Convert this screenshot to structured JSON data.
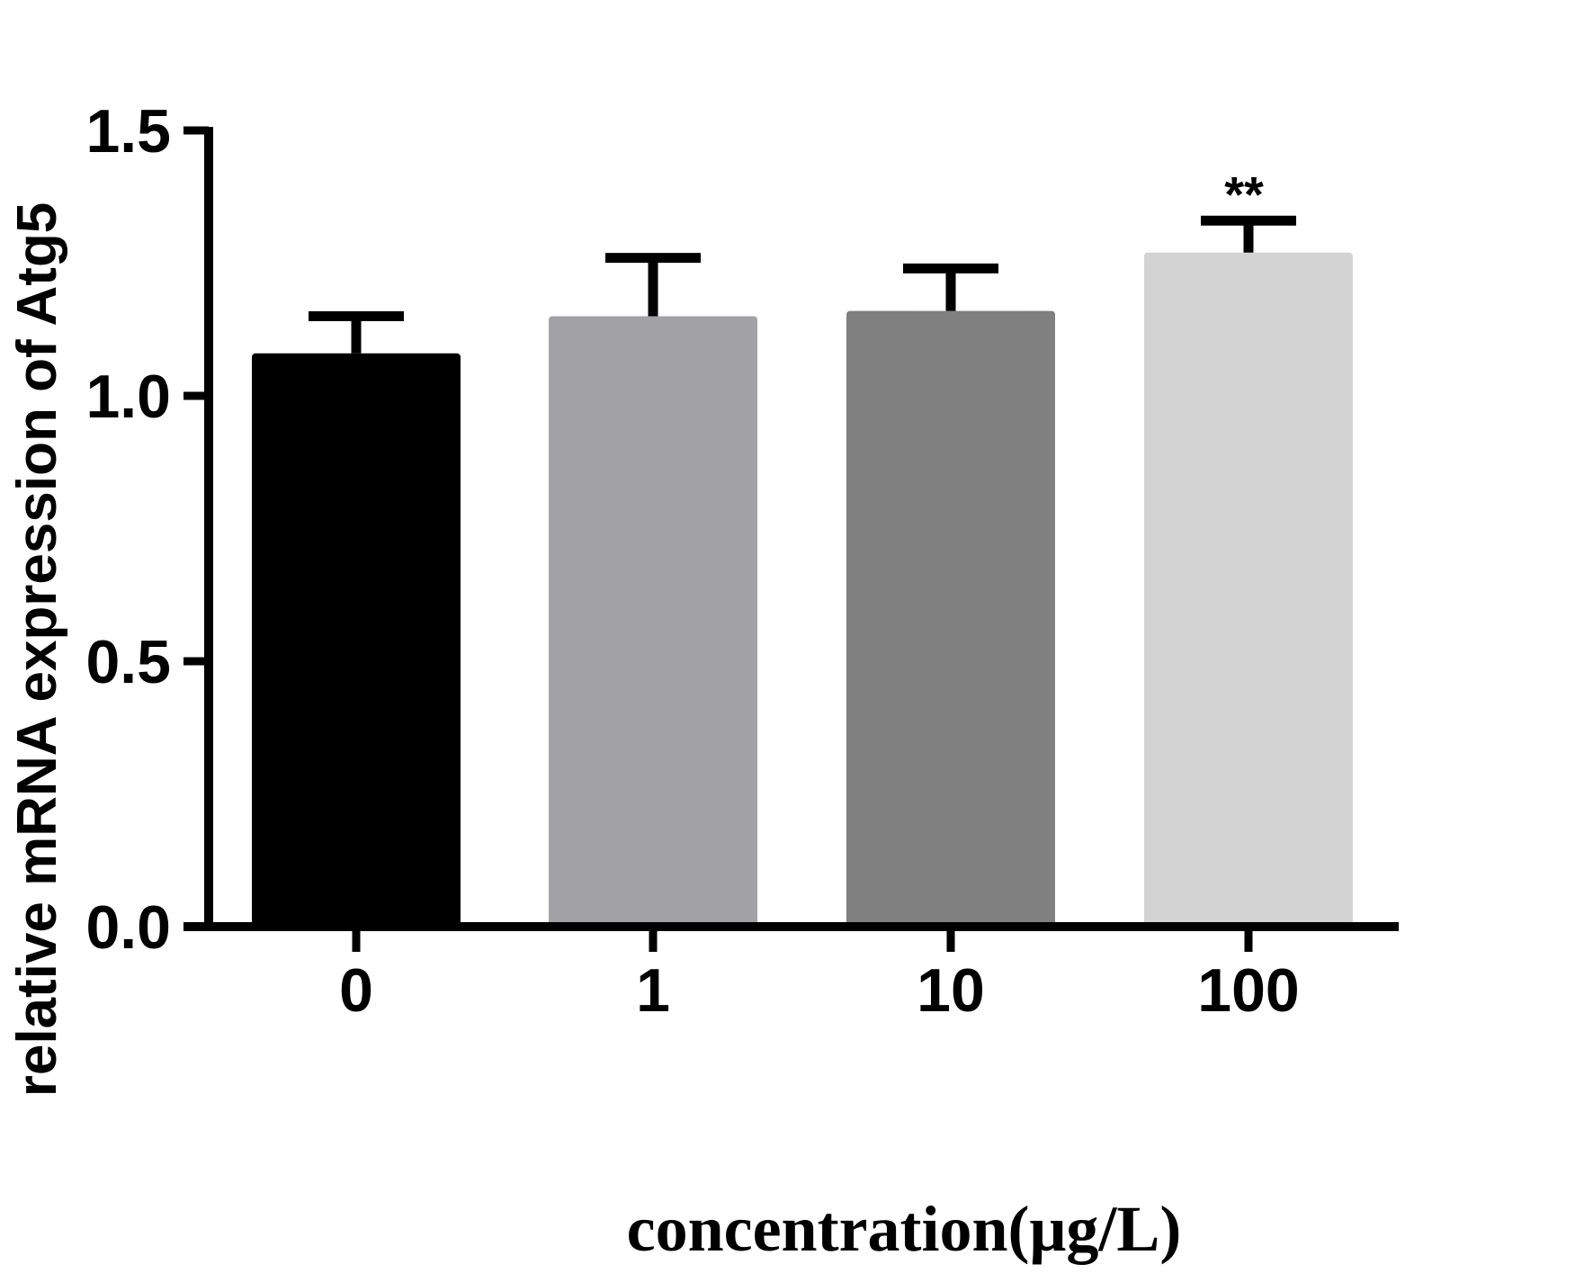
{
  "chart_data": {
    "type": "bar",
    "categories": [
      "0",
      "1",
      "10",
      "100"
    ],
    "values": [
      1.08,
      1.15,
      1.16,
      1.27
    ],
    "error": [
      0.07,
      0.11,
      0.08,
      0.06
    ],
    "colors": [
      "#000000",
      "#a2a2a6",
      "#808080",
      "#d3d3d3"
    ],
    "annotations": [
      "",
      "",
      "",
      "**"
    ],
    "xlabel": "concentration(μg/L)",
    "ylabel": "relative mRNA expression of Atg5",
    "ylim": [
      0,
      1.5
    ],
    "yticks": [
      0.0,
      0.5,
      1.0,
      1.5
    ],
    "ytick_labels": [
      "0.0",
      "0.5",
      "1.0",
      "1.5"
    ],
    "grid": false,
    "legend": "none"
  }
}
